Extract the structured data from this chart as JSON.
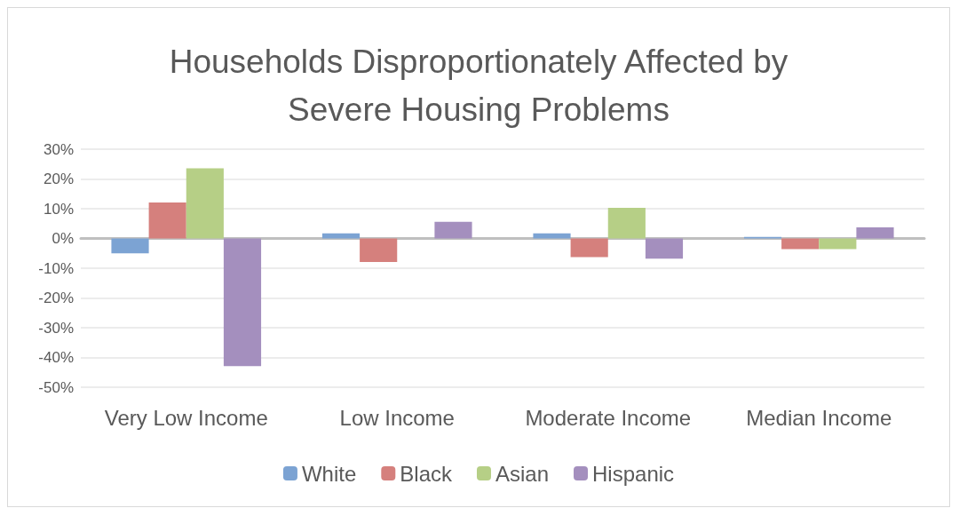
{
  "chart_data": {
    "type": "bar",
    "title": "Households Disproportionately Affected by\nSevere Housing Problems",
    "categories": [
      "Very Low Income",
      "Low Income",
      "Moderate Income",
      "Median Income"
    ],
    "series": [
      {
        "name": "White",
        "color": "#7ca3d3",
        "values": [
          -0.05,
          0.017,
          0.017,
          0.005
        ]
      },
      {
        "name": "Black",
        "color": "#d5807d",
        "values": [
          0.121,
          -0.079,
          -0.063,
          -0.036
        ]
      },
      {
        "name": "Asian",
        "color": "#b6cf86",
        "values": [
          0.236,
          0,
          0.103,
          -0.036
        ]
      },
      {
        "name": "Hispanic",
        "color": "#a48fbe",
        "values": [
          -0.429,
          0.056,
          -0.068,
          0.037
        ]
      }
    ],
    "ylim": [
      -0.5,
      0.3
    ],
    "yticks": [
      {
        "value": -0.5,
        "label": "-50%"
      },
      {
        "value": -0.4,
        "label": "-40%"
      },
      {
        "value": -0.3,
        "label": "-30%"
      },
      {
        "value": -0.2,
        "label": "-20%"
      },
      {
        "value": -0.1,
        "label": "-10%"
      },
      {
        "value": 0,
        "label": "0%"
      },
      {
        "value": 0.1,
        "label": "10%"
      },
      {
        "value": 0.2,
        "label": "20%"
      },
      {
        "value": 0.3,
        "label": "30%"
      }
    ],
    "grid": "y",
    "legend": "bottom"
  }
}
